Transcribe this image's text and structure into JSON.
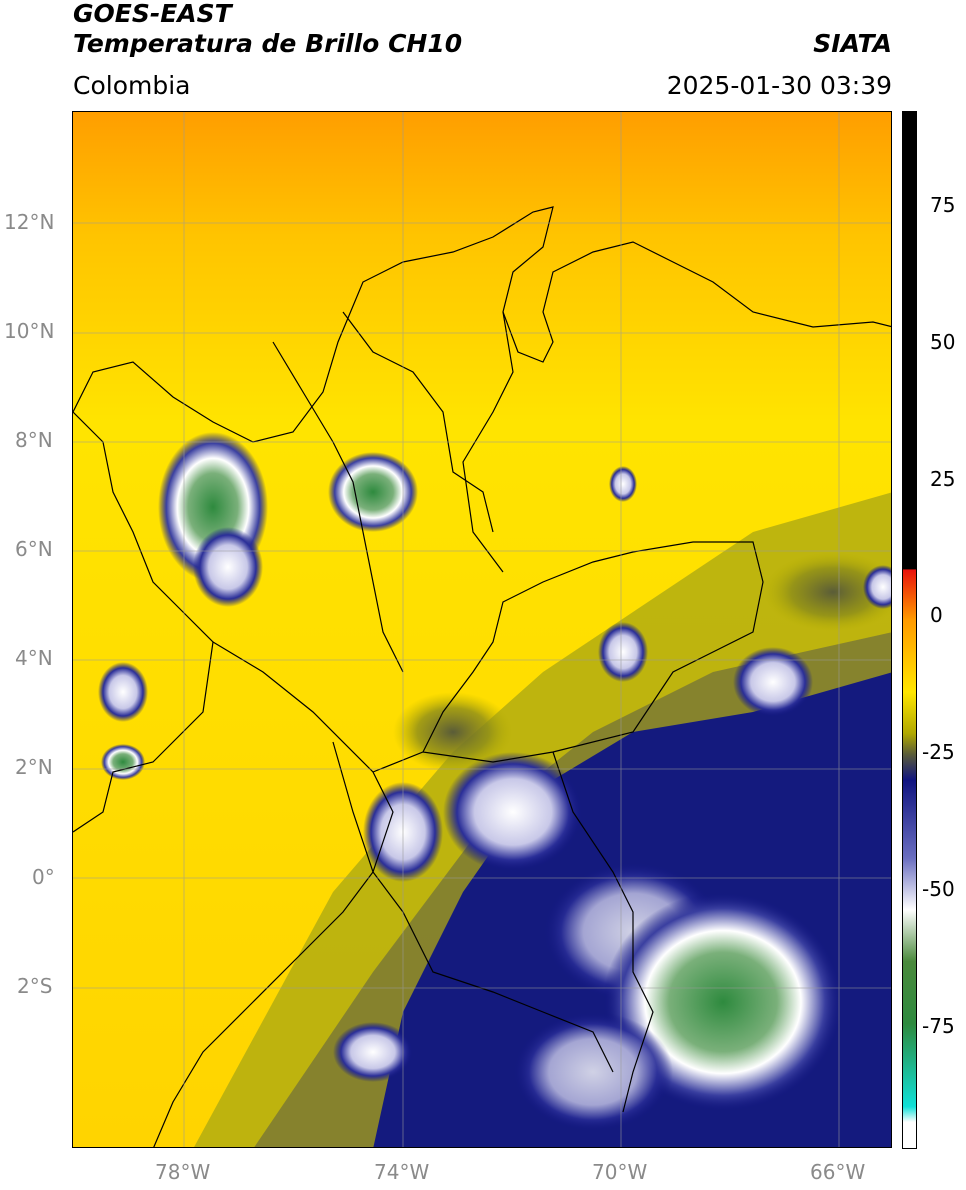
{
  "header": {
    "satellite": "GOES-EAST",
    "product": "Temperatura de Brillo CH10",
    "region": "Colombia",
    "source": "SIATA",
    "datetime": "2025-01-30 03:39"
  },
  "map": {
    "lat_ticks": [
      "12°N",
      "10°N",
      "8°N",
      "6°N",
      "4°N",
      "2°N",
      "0°",
      "2°S"
    ],
    "lon_ticks": [
      "78°W",
      "74°W",
      "70°W",
      "66°W"
    ],
    "extent": {
      "lon_min": -80,
      "lon_max": -65,
      "lat_min": -5,
      "lat_max": 14
    }
  },
  "colorbar": {
    "ticks": [
      "75",
      "50",
      "25",
      "0",
      "-25",
      "-50",
      "-75"
    ],
    "colors": {
      "black": "#000000",
      "red": "#e8120c",
      "orange": "#ff9a00",
      "yellow": "#ffe600",
      "olive": "#8c8c1a",
      "navy": "#101480",
      "white": "#ffffff",
      "green": "#2e8a3e",
      "cyan": "#10e0d8"
    }
  }
}
